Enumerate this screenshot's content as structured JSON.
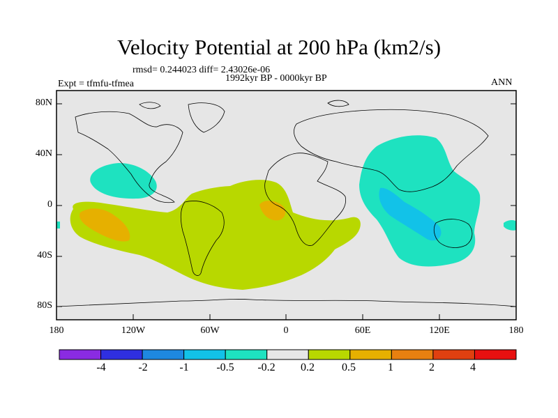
{
  "title": "Velocity Potential at 200 hPa (km2/s)",
  "stats_line": "rmsd= 0.244023 diff= 2.43026e-06",
  "period_line": "1992kyr BP - 0000kyr BP",
  "expt_line": "Expt = tfmfu-tfmea",
  "season": "ANN",
  "y_axis": {
    "labels": [
      "80N",
      "40N",
      "0",
      "40S",
      "80S"
    ]
  },
  "x_axis": {
    "labels": [
      "180",
      "120W",
      "60W",
      "0",
      "60E",
      "120E",
      "180"
    ]
  },
  "colorbar": {
    "colors": [
      "#8a2be2",
      "#2f2fe0",
      "#1e88e0",
      "#12c2e8",
      "#1ee2c0",
      "#e6e6e6",
      "#b8d800",
      "#e6b000",
      "#e88010",
      "#e04010",
      "#e81010"
    ],
    "labels": [
      "-4",
      "-2",
      "-1",
      "-0.5",
      "-0.2",
      "0.2",
      "0.5",
      "1",
      "2",
      "4"
    ]
  },
  "colors": {
    "background": "#e6e6e6",
    "positive_light": "#b8d800",
    "positive_medium": "#e6b000",
    "negative_light": "#1ee2c0",
    "negative_medium": "#12c2e8"
  }
}
